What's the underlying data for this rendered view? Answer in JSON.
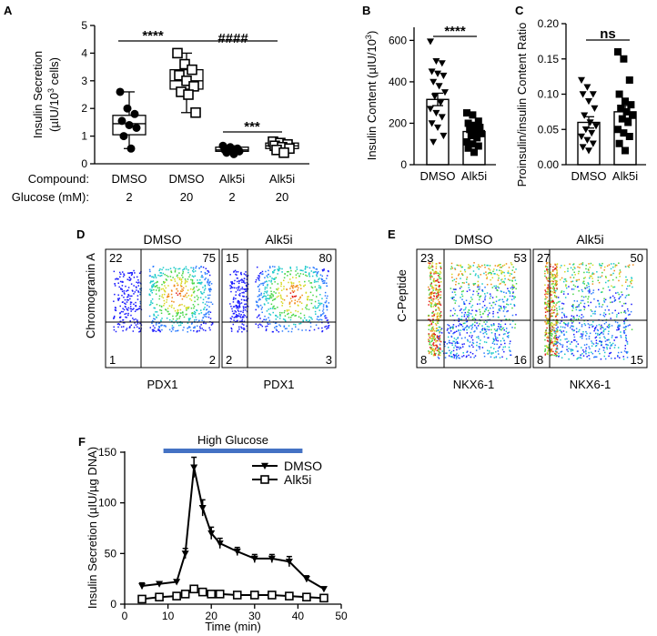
{
  "chart_data": [
    {
      "panel": "A",
      "type": "box",
      "ylabel": "Insulin Secretion (µIU/10³ cells)",
      "ylabel_parts": {
        "main": "Insulin Secretion",
        "open": "(µIU/10",
        "sup": "3",
        "close": " cells)"
      },
      "ylim": [
        0,
        5
      ],
      "yticks": [
        "0",
        "1",
        "2",
        "3",
        "4",
        "5"
      ],
      "row_labels": {
        "compound": "Compound:",
        "glucose": "Glucose (mM):"
      },
      "groups": [
        {
          "compound": "DMSO",
          "glucose": "2",
          "marker": "filled-circle",
          "min": 0.55,
          "q1": 1.05,
          "median": 1.45,
          "q3": 1.75,
          "max": 2.6,
          "points": [
            2.6,
            2.0,
            1.8,
            1.55,
            1.4,
            1.3,
            1.0,
            0.55
          ]
        },
        {
          "compound": "DMSO",
          "glucose": "20",
          "marker": "open-square",
          "min": 1.85,
          "q1": 2.7,
          "median": 3.0,
          "q3": 3.4,
          "max": 4.0,
          "points": [
            4.0,
            3.6,
            3.4,
            3.2,
            3.0,
            2.8,
            2.6,
            2.5,
            1.85
          ]
        },
        {
          "compound": "Alk5i",
          "glucose": "2",
          "marker": "filled-circle",
          "min": 0.35,
          "q1": 0.45,
          "median": 0.5,
          "q3": 0.6,
          "max": 0.65,
          "points": [
            0.65,
            0.6,
            0.55,
            0.5,
            0.48,
            0.45,
            0.4,
            0.35
          ]
        },
        {
          "compound": "Alk5i",
          "glucose": "20",
          "marker": "open-square",
          "min": 0.4,
          "q1": 0.55,
          "median": 0.65,
          "q3": 0.75,
          "max": 0.8,
          "points": [
            0.8,
            0.75,
            0.7,
            0.65,
            0.6,
            0.55,
            0.5,
            0.4
          ]
        }
      ],
      "annotations": [
        "****",
        "####",
        "***"
      ]
    },
    {
      "panel": "B",
      "type": "bar",
      "ylabel": "Insulin Content (µIU/10³)",
      "ylabel_parts": {
        "main": "Insulin Content (µIU/10",
        "sup": "3",
        "close": ")"
      },
      "ylim": [
        0,
        650
      ],
      "yticks": [
        "0",
        "200",
        "400",
        "600"
      ],
      "categories": [
        "DMSO",
        "Alk5i"
      ],
      "values": [
        315,
        160
      ],
      "errors": [
        30,
        15
      ],
      "points": [
        [
          595,
          500,
          490,
          450,
          440,
          430,
          400,
          380,
          350,
          330,
          300,
          270,
          250,
          230,
          200,
          180,
          140,
          110
        ],
        [
          250,
          240,
          210,
          200,
          190,
          180,
          170,
          160,
          150,
          140,
          130,
          110,
          100,
          90,
          80,
          60
        ]
      ],
      "annotation": "****"
    },
    {
      "panel": "C",
      "type": "bar",
      "ylabel": "Proinsulin/insulin Content Ratio",
      "ylim": [
        0,
        0.2
      ],
      "yticks": [
        "0.00",
        "0.05",
        "0.10",
        "0.15",
        "0.20"
      ],
      "categories": [
        "DMSO",
        "Alk5i"
      ],
      "values": [
        0.06,
        0.075
      ],
      "errors": [
        0.008,
        0.009
      ],
      "points": [
        [
          0.12,
          0.11,
          0.1,
          0.1,
          0.09,
          0.08,
          0.07,
          0.06,
          0.055,
          0.05,
          0.045,
          0.04,
          0.035,
          0.03,
          0.025,
          0.02
        ],
        [
          0.16,
          0.15,
          0.12,
          0.1,
          0.09,
          0.085,
          0.08,
          0.075,
          0.07,
          0.065,
          0.06,
          0.05,
          0.045,
          0.04,
          0.03,
          0.02
        ]
      ],
      "annotation": "ns"
    },
    {
      "panel": "D",
      "type": "flow-cytometry",
      "ylabel": "Chromogranin A",
      "plots": [
        {
          "title": "DMSO",
          "xlabel": "PDX1",
          "quadrants": {
            "ul": "22",
            "ur": "75",
            "ll": "1",
            "lr": "2"
          }
        },
        {
          "title": "Alk5i",
          "xlabel": "PDX1",
          "quadrants": {
            "ul": "15",
            "ur": "80",
            "ll": "2",
            "lr": "3"
          }
        }
      ]
    },
    {
      "panel": "E",
      "type": "flow-cytometry",
      "ylabel": "C-Peptide",
      "plots": [
        {
          "title": "DMSO",
          "xlabel": "NKX6-1",
          "quadrants": {
            "ul": "23",
            "ur": "53",
            "ll": "8",
            "lr": "16"
          }
        },
        {
          "title": "Alk5i",
          "xlabel": "NKX6-1",
          "quadrants": {
            "ul": "27",
            "ur": "50",
            "ll": "8",
            "lr": "15"
          }
        }
      ]
    },
    {
      "panel": "F",
      "type": "line",
      "xlabel": "Time (min)",
      "ylabel": "Insulin Secretion (µIU/µg DNA)",
      "xlim": [
        0,
        50
      ],
      "ylim": [
        0,
        150
      ],
      "xticks": [
        "0",
        "10",
        "20",
        "30",
        "40",
        "50"
      ],
      "yticks": [
        "0",
        "50",
        "100",
        "150"
      ],
      "bar_label": "High Glucose",
      "bar_range": [
        10,
        40
      ],
      "series": [
        {
          "name": "DMSO",
          "marker": "filled-triangle-down",
          "x": [
            4,
            8,
            12,
            14,
            16,
            18,
            20,
            22,
            26,
            30,
            34,
            38,
            42,
            46
          ],
          "y": [
            18,
            20,
            22,
            50,
            135,
            95,
            70,
            60,
            52,
            45,
            45,
            42,
            25,
            15
          ],
          "err": [
            3,
            2,
            2,
            5,
            10,
            8,
            6,
            5,
            4,
            4,
            4,
            5,
            3,
            2
          ]
        },
        {
          "name": "Alk5i",
          "marker": "open-square",
          "x": [
            4,
            8,
            12,
            14,
            16,
            18,
            20,
            22,
            26,
            30,
            34,
            38,
            42,
            46
          ],
          "y": [
            5,
            7,
            8,
            10,
            15,
            12,
            10,
            10,
            9,
            9,
            9,
            8,
            7,
            6
          ],
          "err": [
            1,
            1,
            1,
            1,
            2,
            1,
            1,
            1,
            1,
            1,
            1,
            1,
            1,
            1
          ]
        }
      ]
    }
  ]
}
